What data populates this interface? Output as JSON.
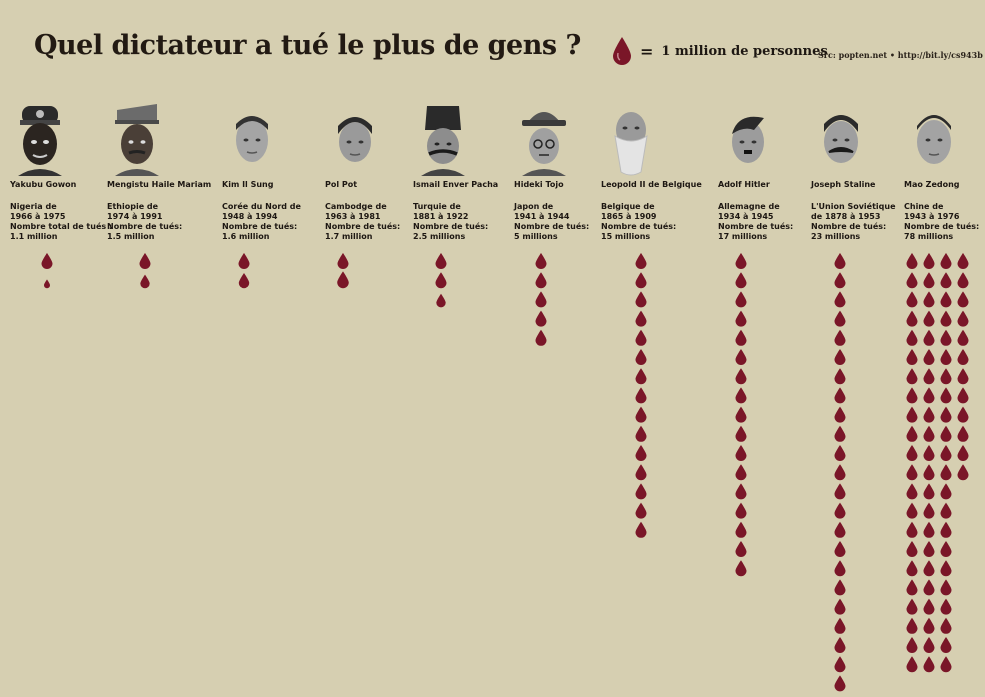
{
  "header": {
    "title": "Quel dictateur a tué le plus de gens ?",
    "legend_equals": "=",
    "legend_text": "1 million de personnes",
    "source": "Src: popten.net  •  http://bit.ly/cs943b"
  },
  "colors": {
    "drop": "#7a1628",
    "background": "#d6cfb1"
  },
  "chart_data": {
    "type": "pictogram",
    "title": "Quel dictateur a tué le plus de gens ?",
    "unit": "1 million de personnes",
    "categories": [
      "Yakubu Gowon",
      "Mengistu Haile Mariam",
      "Kim Il Sung",
      "Pol Pot",
      "Ismail Enver Pacha",
      "Hideki Tojo",
      "Leopold II de Belgique",
      "Adolf Hitler",
      "Joseph Staline",
      "Mao Zedong"
    ],
    "values": [
      1.1,
      1.5,
      1.6,
      1.7,
      2.5,
      5,
      15,
      17,
      23,
      78
    ],
    "dictators": [
      {
        "name": "Yakubu Gowon",
        "country_line": "Nigeria de",
        "period_line": "1966 à 1975",
        "killed_label": "Nombre total de tués :",
        "killed_value": "1.1 million",
        "millions": 1.1
      },
      {
        "name": "Mengistu Haile Mariam",
        "country_line": "Ethiopie de",
        "period_line": "1974 à 1991",
        "killed_label": "Nombre de tués:",
        "killed_value": "1.5 million",
        "millions": 1.5
      },
      {
        "name": "Kim Il Sung",
        "country_line": "Corée du Nord de",
        "period_line": "1948 à 1994",
        "killed_label": "Nombre de tués:",
        "killed_value": "1.6 million",
        "millions": 1.6
      },
      {
        "name": "Pol Pot",
        "country_line": "Cambodge de",
        "period_line": "1963 à 1981",
        "killed_label": "Nombre de tués:",
        "killed_value": "1.7 million",
        "millions": 1.7
      },
      {
        "name": "Ismail Enver Pacha",
        "country_line": "Turquie de",
        "period_line": "1881 à 1922",
        "killed_label": "Nombre de tués:",
        "killed_value": "2.5 millions",
        "millions": 2.5
      },
      {
        "name": "Hideki Tojo",
        "country_line": "Japon de",
        "period_line": "1941 à 1944",
        "killed_label": "Nombre de tués:",
        "killed_value": "5 millions",
        "millions": 5
      },
      {
        "name": "Leopold II de Belgique",
        "country_line": "Belgique de",
        "period_line": "1865 à 1909",
        "killed_label": "Nombre de tués:",
        "killed_value": "15 millions",
        "millions": 15
      },
      {
        "name": "Adolf Hitler",
        "country_line": "Allemagne de",
        "period_line": "1934 à 1945",
        "killed_label": "Nombre de tués:",
        "killed_value": "17 millions",
        "millions": 17
      },
      {
        "name": "Joseph Staline",
        "country_line": "L'Union Soviétique",
        "period_line": "de 1878 à 1953",
        "killed_label": "Nombre de tués:",
        "killed_value": "23 millions",
        "millions": 23
      },
      {
        "name": "Mao Zedong",
        "country_line": "Chine de",
        "period_line": "1943 à 1976",
        "killed_label": "Nombre de tués:",
        "killed_value": "78 millions",
        "millions": 78
      }
    ]
  }
}
